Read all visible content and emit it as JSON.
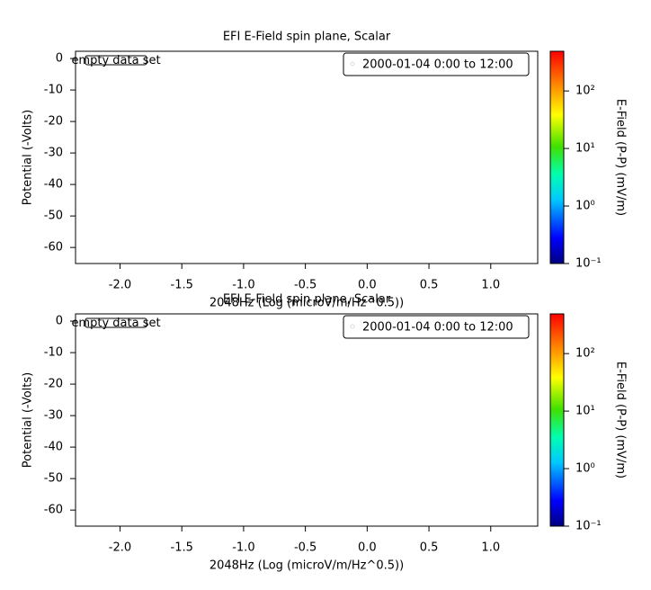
{
  "chart_data": [
    {
      "type": "spectrogram",
      "title": "EFI  E-Field spin plane, Scalar",
      "xlabel": "2048Hz (Log (microV/m/Hz^0.5))",
      "ylabel": "Potential (-Volts)",
      "zlabel": "E-Field (P-P) (mV/m)",
      "annotation": "empty data set",
      "legend": "2000-01-04 0:00 to 12:00",
      "legend_loc": "upper right",
      "xlim": [
        -2.36,
        1.38
      ],
      "xticks": [
        {
          "value": -2,
          "label": "-2.0"
        },
        -1.5,
        {
          "value": -1,
          "label": "-1.0"
        },
        -0.5,
        {
          "value": 0,
          "label": "0.0"
        },
        0.5,
        {
          "value": 1,
          "label": "1.0"
        }
      ],
      "ylim": [
        -65.1,
        2.3
      ],
      "yticks": [
        0,
        -10,
        -20,
        -30,
        -40,
        -50,
        -60
      ],
      "zlim": [
        0.1,
        490
      ],
      "zscale": "log",
      "zticks": [
        {
          "value": 0.1,
          "label": "10⁻¹"
        },
        {
          "value": 1,
          "label": "10⁰"
        },
        {
          "value": 10,
          "label": "10¹"
        },
        {
          "value": 100,
          "label": "10²"
        }
      ]
    },
    {
      "type": "spectrogram",
      "title": "EFI  E-Field spin plane, Scalar",
      "xlabel": "2048Hz (Log (microV/m/Hz^0.5))",
      "ylabel": "Potential (-Volts)",
      "zlabel": "E-Field (P-P) (mV/m)",
      "annotation": "empty data set",
      "legend": "2000-01-04 0:00 to 12:00",
      "legend_loc": "upper right",
      "xlim": [
        -2.36,
        1.38
      ],
      "xticks": [
        {
          "value": -2,
          "label": "-2.0"
        },
        -1.5,
        {
          "value": -1,
          "label": "-1.0"
        },
        -0.5,
        {
          "value": 0,
          "label": "0.0"
        },
        0.5,
        {
          "value": 1,
          "label": "1.0"
        }
      ],
      "ylim": [
        -65.1,
        2.3
      ],
      "yticks": [
        0,
        -10,
        -20,
        -30,
        -40,
        -50,
        -60
      ],
      "zlim": [
        0.1,
        490
      ],
      "zscale": "log",
      "zticks": [
        {
          "value": 0.1,
          "label": "10⁻¹"
        },
        {
          "value": 1,
          "label": "10⁰"
        },
        {
          "value": 10,
          "label": "10¹"
        },
        {
          "value": 100,
          "label": "10²"
        }
      ]
    }
  ]
}
